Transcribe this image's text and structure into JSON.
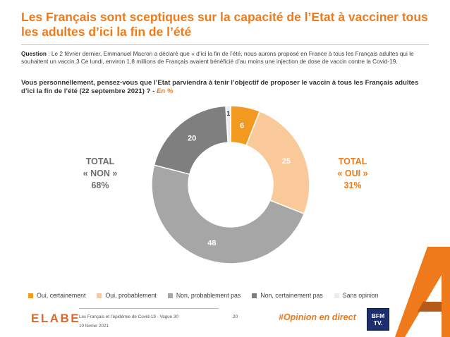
{
  "header": {
    "title": "Les Français sont sceptiques sur la capacité de l’Etat à vacciner tous les adultes d’ici la fin de l’été"
  },
  "question": {
    "label": "Question",
    "text": " : Le 2 février dernier, Emmanuel Macron a déclaré que « d’ici la fin de l’été, nous aurons proposé en France à tous les Français adultes qui le souhaitent un vaccin.3 Ce lundi, environ 1,8 millions de Français avaient bénéficié d’au moins une injection de dose de vaccin contre la Covid-19.",
    "prompt": "Vous personnellement, pensez-vous que l’Etat parviendra à tenir l’objectif de proposer le vaccin à tous les Français adultes d’ici la fin de l’été (22 septembre 2021) ? - ",
    "unit": "En %"
  },
  "totals": {
    "non_label": "TOTAL",
    "non_quote": "« NON »",
    "non_value": "68%",
    "oui_label": "TOTAL",
    "oui_quote": "« OUI »",
    "oui_value": "31%"
  },
  "chart_data": {
    "type": "pie",
    "variant": "donut",
    "categories": [
      "Oui, certainement",
      "Oui, probablement",
      "Non, probablement pas",
      "Non, certainement pas",
      "Sans opinion"
    ],
    "values": [
      6,
      25,
      48,
      20,
      1
    ],
    "colors": [
      "#f29a1f",
      "#fac99a",
      "#a6a6a6",
      "#7f7f7f",
      "#ececec"
    ],
    "label_colors": [
      "#ffffff",
      "#ffffff",
      "#ffffff",
      "#ffffff",
      "#333333"
    ],
    "legend_position": "bottom"
  },
  "footer": {
    "logo": "ELABE",
    "study": "Les Français et l’épidémie de Covid-19 - Vague 30",
    "date": "10 février 2021",
    "page": "20",
    "hashtag": "#Opinion en direct",
    "partner_logo_line1": "BFM",
    "partner_logo_line2": "TV."
  }
}
